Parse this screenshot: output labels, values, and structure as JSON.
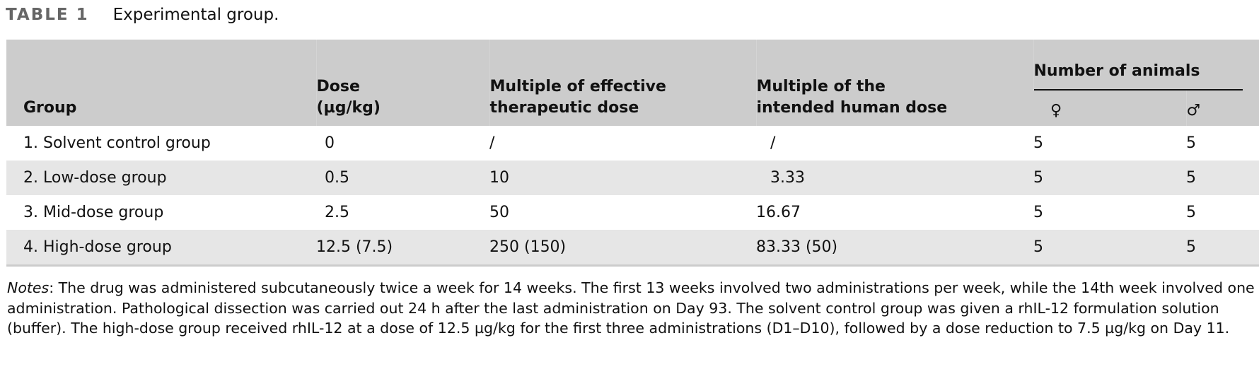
{
  "title": {
    "label": "TABLE 1",
    "caption": "Experimental group."
  },
  "colors": {
    "header_bg": "#cccccc",
    "alt_row_bg": "#e6e6e6",
    "label_gray": "#666666"
  },
  "table": {
    "headers": {
      "group": "Group",
      "dose_line1": "Dose",
      "dose_line2": "(µg/kg)",
      "effective_line1": "Multiple of effective",
      "effective_line2": "therapeutic dose",
      "human_line1": "Multiple of the",
      "human_line2": "intended human dose",
      "animals": "Number of animals",
      "female": "♀",
      "male": "♂"
    },
    "rows": [
      {
        "group": "1. Solvent control group",
        "dose": "0",
        "effective": "/",
        "human": "/",
        "female": "5",
        "male": "5"
      },
      {
        "group": "2. Low-dose group",
        "dose": "0.5",
        "effective": "10",
        "human": "3.33",
        "female": "5",
        "male": "5"
      },
      {
        "group": "3. Mid-dose group",
        "dose": "2.5",
        "effective": "50",
        "human": "16.67",
        "female": "5",
        "male": "5"
      },
      {
        "group": "4. High-dose group",
        "dose": "12.5 (7.5)",
        "effective": "250 (150)",
        "human": "83.33 (50)",
        "female": "5",
        "male": "5"
      }
    ]
  },
  "notes": {
    "label": "Notes",
    "text": ": The drug was administered subcutaneously twice a week for 14 weeks. The first 13 weeks involved two administrations per week, while the 14th week involved one administration. Pathological dissection was carried out 24 h after the last administration on Day 93. The solvent control group was given a rhIL-12 formulation solution (buffer). The high-dose group received rhIL-12 at a dose of 12.5 µg/kg for the first three administrations (D1–D10), followed by a dose reduction to 7.5 µg/kg on Day 11."
  }
}
